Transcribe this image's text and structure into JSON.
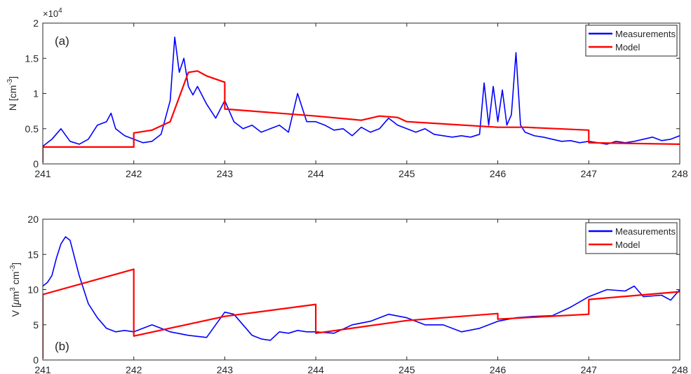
{
  "chart_data": [
    {
      "type": "line",
      "panel_label": "(a)",
      "ylabel": "N [cm",
      "ylabel_sup": "-3",
      "ylabel_end": "]",
      "exponent_base": "×10",
      "exponent_power": "4",
      "xlim": [
        241,
        248
      ],
      "ylim": [
        0,
        2
      ],
      "xticks": [
        241,
        242,
        243,
        244,
        245,
        246,
        247,
        248
      ],
      "xtick_labels": [
        "241",
        "242",
        "243",
        "244",
        "245",
        "246",
        "247",
        "248"
      ],
      "yticks": [
        0,
        0.5,
        1,
        1.5,
        2
      ],
      "ytick_labels": [
        "0",
        "0.5",
        "1",
        "1.5",
        "2"
      ],
      "legend": {
        "position": "top-right",
        "entries": [
          "Measurements",
          "Model"
        ]
      },
      "series": [
        {
          "name": "Measurements",
          "color": "#0000ff",
          "x": [
            241.0,
            241.1,
            241.2,
            241.3,
            241.4,
            241.5,
            241.6,
            241.7,
            241.75,
            241.8,
            241.9,
            242.0,
            242.1,
            242.2,
            242.3,
            242.4,
            242.45,
            242.5,
            242.55,
            242.6,
            242.65,
            242.7,
            242.8,
            242.9,
            243.0,
            243.1,
            243.2,
            243.3,
            243.4,
            243.5,
            243.6,
            243.7,
            243.8,
            243.9,
            244.0,
            244.1,
            244.2,
            244.3,
            244.4,
            244.5,
            244.6,
            244.7,
            244.8,
            244.9,
            245.0,
            245.1,
            245.2,
            245.3,
            245.4,
            245.5,
            245.6,
            245.7,
            245.8,
            245.85,
            245.9,
            245.95,
            246.0,
            246.05,
            246.1,
            246.15,
            246.2,
            246.25,
            246.3,
            246.4,
            246.5,
            246.6,
            246.7,
            246.8,
            246.9,
            247.0,
            247.1,
            247.2,
            247.3,
            247.4,
            247.5,
            247.6,
            247.7,
            247.8,
            247.9,
            248.0
          ],
          "y": [
            0.25,
            0.35,
            0.5,
            0.32,
            0.28,
            0.35,
            0.55,
            0.6,
            0.72,
            0.5,
            0.4,
            0.35,
            0.3,
            0.32,
            0.42,
            0.9,
            1.8,
            1.3,
            1.5,
            1.1,
            0.98,
            1.1,
            0.85,
            0.65,
            0.9,
            0.6,
            0.5,
            0.55,
            0.45,
            0.5,
            0.55,
            0.45,
            1.0,
            0.6,
            0.6,
            0.55,
            0.48,
            0.5,
            0.4,
            0.52,
            0.45,
            0.5,
            0.65,
            0.55,
            0.5,
            0.45,
            0.5,
            0.42,
            0.4,
            0.38,
            0.4,
            0.38,
            0.42,
            1.15,
            0.55,
            1.1,
            0.6,
            1.05,
            0.55,
            0.7,
            1.58,
            0.55,
            0.45,
            0.4,
            0.38,
            0.35,
            0.32,
            0.33,
            0.3,
            0.32,
            0.3,
            0.28,
            0.32,
            0.3,
            0.32,
            0.35,
            0.38,
            0.33,
            0.35,
            0.4
          ]
        },
        {
          "name": "Model",
          "color": "#ff0000",
          "x": [
            241.0,
            241.0,
            242.0,
            242.0,
            242.2,
            242.4,
            242.5,
            242.6,
            242.7,
            242.8,
            243.0,
            243.0,
            244.0,
            244.5,
            244.7,
            244.9,
            245.0,
            246.0,
            246.3,
            247.0,
            247.0,
            248.0
          ],
          "y": [
            0.02,
            0.24,
            0.24,
            0.44,
            0.48,
            0.6,
            0.95,
            1.3,
            1.32,
            1.25,
            1.16,
            0.78,
            0.68,
            0.62,
            0.68,
            0.66,
            0.6,
            0.52,
            0.52,
            0.48,
            0.3,
            0.28
          ]
        }
      ]
    },
    {
      "type": "line",
      "panel_label": "(b)",
      "ylabel": "V [",
      "ylabel_mu": "μ",
      "ylabel_mid": "m",
      "ylabel_sup1": "3",
      "ylabel_mid2": " cm",
      "ylabel_sup2": "-3",
      "ylabel_end": "]",
      "xlim": [
        241,
        248
      ],
      "ylim": [
        0,
        20
      ],
      "xticks": [
        241,
        242,
        243,
        244,
        245,
        246,
        247,
        248
      ],
      "xtick_labels": [
        "241",
        "242",
        "243",
        "244",
        "245",
        "246",
        "247",
        "248"
      ],
      "yticks": [
        0,
        5,
        10,
        15,
        20
      ],
      "ytick_labels": [
        "0",
        "5",
        "10",
        "15",
        "20"
      ],
      "legend": {
        "position": "top-right",
        "entries": [
          "Measurements",
          "Model"
        ]
      },
      "series": [
        {
          "name": "Measurements",
          "color": "#0000ff",
          "x": [
            241.0,
            241.05,
            241.1,
            241.15,
            241.2,
            241.25,
            241.3,
            241.35,
            241.4,
            241.45,
            241.5,
            241.6,
            241.7,
            241.8,
            241.9,
            242.0,
            242.2,
            242.4,
            242.6,
            242.8,
            243.0,
            243.1,
            243.2,
            243.3,
            243.4,
            243.5,
            243.6,
            243.7,
            243.8,
            243.9,
            244.0,
            244.2,
            244.4,
            244.6,
            244.8,
            245.0,
            245.2,
            245.4,
            245.6,
            245.8,
            246.0,
            246.2,
            246.4,
            246.6,
            246.8,
            247.0,
            247.2,
            247.4,
            247.5,
            247.6,
            247.8,
            247.9,
            248.0
          ],
          "y": [
            10.5,
            11.0,
            12.0,
            14.5,
            16.5,
            17.5,
            17.0,
            14.5,
            12.0,
            10.0,
            8.0,
            6.0,
            4.5,
            4.0,
            4.2,
            4.0,
            5.0,
            4.0,
            3.5,
            3.2,
            6.8,
            6.5,
            5.0,
            3.5,
            3.0,
            2.8,
            4.0,
            3.8,
            4.2,
            4.0,
            4.0,
            3.8,
            5.0,
            5.5,
            6.5,
            6.0,
            5.0,
            5.0,
            4.0,
            4.5,
            5.5,
            6.0,
            6.2,
            6.3,
            7.5,
            9.0,
            10.0,
            9.8,
            10.5,
            9.0,
            9.2,
            8.5,
            10.0
          ]
        },
        {
          "name": "Model",
          "color": "#ff0000",
          "x": [
            241.0,
            241.0,
            242.0,
            242.0,
            243.0,
            244.0,
            244.0,
            245.0,
            246.0,
            246.0,
            247.0,
            247.0,
            248.0
          ],
          "y": [
            0.2,
            9.3,
            12.9,
            3.4,
            6.2,
            7.9,
            3.8,
            5.6,
            6.6,
            5.8,
            6.5,
            8.6,
            9.7
          ]
        }
      ]
    }
  ]
}
